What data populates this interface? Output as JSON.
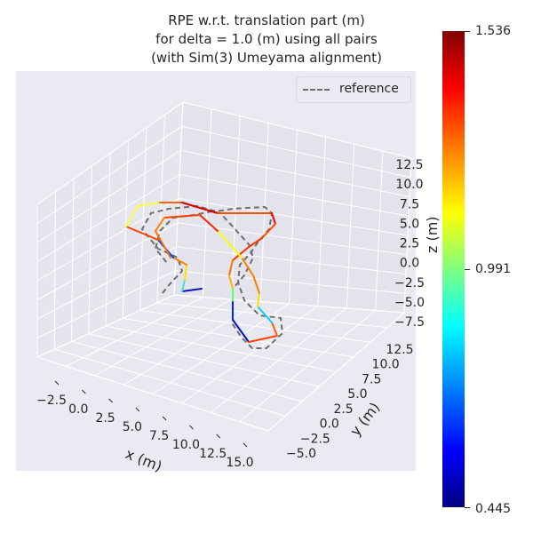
{
  "chart": {
    "title_line1": "RPE w.r.t. translation part (m)",
    "title_line2": "for delta = 1.0 (m) using all pairs",
    "title_line3": "(with Sim(3) Umeyama alignment)"
  },
  "legend": {
    "label": "reference"
  },
  "colorbar": {
    "min_label": "0.445",
    "mid_label": "0.991",
    "max_label": "1.536"
  },
  "chart_data": {
    "type": "line-3d",
    "title": "RPE w.r.t. translation part (m)\nfor delta = 1.0 (m) using all pairs\n(with Sim(3) Umeyama alignment)",
    "xlabel": "x (m)",
    "ylabel": "y (m)",
    "zlabel": "z (m)",
    "x_ticks": [
      "−2.5",
      "0.0",
      "2.5",
      "5.0",
      "7.5",
      "10.0",
      "12.5",
      "15.0"
    ],
    "y_ticks": [
      "−5.0",
      "−2.5",
      "0.0",
      "2.5",
      "5.0",
      "7.5",
      "10.0",
      "12.5"
    ],
    "z_ticks": [
      "−7.5",
      "−5.0",
      "−2.5",
      "0.0",
      "2.5",
      "5.0",
      "7.5",
      "10.0",
      "12.5"
    ],
    "colormap": "jet",
    "color_range": [
      0.445,
      1.536
    ],
    "colorbar_ticks": [
      0.445,
      0.991,
      1.536
    ],
    "series": [
      {
        "name": "reference",
        "style": "dashed",
        "color": "#6e6e6e"
      },
      {
        "style": "colored by RPE (m)"
      }
    ],
    "legend_position": "upper-right"
  }
}
